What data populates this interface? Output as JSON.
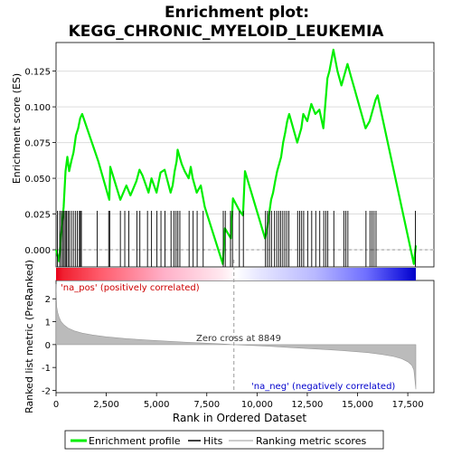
{
  "chart_data": {
    "type": "line",
    "title_line1": "Enrichment plot:",
    "title_line2": "KEGG_CHRONIC_MYELOID_LEUKEMIA",
    "xlabel": "Rank in Ordered Dataset",
    "ylabel_top": "Enrichment score (ES)",
    "ylabel_bottom": "Ranked list metric (PreRanked)",
    "xlim": [
      0,
      18800
    ],
    "x_ticks": [
      0,
      2500,
      5000,
      7500,
      10000,
      12500,
      15000,
      17500
    ],
    "x_tick_labels": [
      "0",
      "2,500",
      "5,000",
      "7,500",
      "10,000",
      "12,500",
      "15,000",
      "17,500"
    ],
    "es_ylim": [
      -0.012,
      0.145
    ],
    "es_ticks": [
      0.0,
      0.025,
      0.05,
      0.075,
      0.1,
      0.125
    ],
    "es_tick_labels": [
      "0.000",
      "0.025",
      "0.050",
      "0.075",
      "0.100",
      "0.125"
    ],
    "metric_ylim": [
      -2.1,
      2.8
    ],
    "metric_ticks": [
      -2,
      -1,
      0,
      1,
      2
    ],
    "metric_tick_labels": [
      "-2",
      "-1",
      "0",
      "1",
      "2"
    ],
    "zero_cross_label": "Zero cross at 8849",
    "zero_cross_x": 8849,
    "pos_label": "'na_pos' (positively correlated)",
    "neg_label": "'na_neg' (negatively correlated)",
    "legend": {
      "items": [
        {
          "label": "Enrichment profile",
          "color": "#00ee00"
        },
        {
          "label": "Hits",
          "color": "#000000"
        },
        {
          "label": "Ranking metric scores",
          "color": "#bbbbbb"
        }
      ]
    },
    "colors": {
      "es_line": "#00ee00",
      "hits": "#000000",
      "metric_fill": "#bbbbbb",
      "pos_text": "#cc0000",
      "neg_text": "#0000cc",
      "zero_line": "#999999"
    },
    "es_profile": {
      "x": [
        0,
        150,
        280,
        380,
        470,
        560,
        650,
        760,
        870,
        990,
        1100,
        1200,
        1300,
        2100,
        2650,
        2700,
        3200,
        3500,
        3700,
        4000,
        4150,
        4300,
        4600,
        4750,
        5000,
        5200,
        5400,
        5700,
        5800,
        5900,
        6000,
        6050,
        6150,
        6250,
        6400,
        6600,
        6700,
        6800,
        7000,
        7200,
        7400,
        8300,
        8400,
        8700,
        8800,
        9100,
        9300,
        9400,
        10400,
        10500,
        10600,
        10700,
        10800,
        10900,
        11000,
        11100,
        11200,
        11300,
        11400,
        11500,
        11600,
        12000,
        12200,
        12300,
        12500,
        12700,
        12900,
        13100,
        13300,
        13500,
        13600,
        13800,
        14000,
        14200,
        14500,
        14700,
        14800,
        15400,
        15600,
        15800,
        15900,
        16000,
        17800,
        17900
      ],
      "y": [
        0.0,
        -0.008,
        0.015,
        0.03,
        0.055,
        0.065,
        0.055,
        0.062,
        0.068,
        0.08,
        0.085,
        0.092,
        0.095,
        0.062,
        0.035,
        0.058,
        0.035,
        0.045,
        0.038,
        0.048,
        0.056,
        0.052,
        0.04,
        0.05,
        0.04,
        0.054,
        0.056,
        0.04,
        0.045,
        0.055,
        0.062,
        0.07,
        0.065,
        0.06,
        0.055,
        0.05,
        0.058,
        0.05,
        0.04,
        0.045,
        0.03,
        -0.01,
        0.015,
        0.008,
        0.036,
        0.028,
        0.024,
        0.055,
        0.008,
        0.015,
        0.025,
        0.035,
        0.04,
        0.048,
        0.055,
        0.06,
        0.065,
        0.075,
        0.082,
        0.09,
        0.095,
        0.075,
        0.085,
        0.095,
        0.09,
        0.102,
        0.095,
        0.098,
        0.085,
        0.12,
        0.125,
        0.14,
        0.125,
        0.115,
        0.13,
        0.12,
        0.115,
        0.085,
        0.09,
        0.1,
        0.105,
        0.108,
        -0.01,
        0.003
      ]
    },
    "hit_positions": [
      70,
      180,
      260,
      330,
      400,
      460,
      520,
      590,
      660,
      760,
      860,
      960,
      1060,
      1160,
      1210,
      1260,
      2050,
      2620,
      2670,
      3200,
      3420,
      3620,
      4020,
      4170,
      4550,
      4750,
      5020,
      5220,
      5420,
      5720,
      5870,
      5970,
      6060,
      6160,
      6620,
      6820,
      7020,
      7320,
      8320,
      8420,
      8680,
      8780,
      9120,
      9320,
      10420,
      10520,
      10620,
      10720,
      10870,
      10980,
      11080,
      11180,
      11280,
      11380,
      11480,
      11580,
      12020,
      12120,
      12220,
      12320,
      12520,
      12720,
      12920,
      13120,
      13320,
      13420,
      13520,
      13820,
      14320,
      14420,
      14520,
      15420,
      15620,
      15720,
      15820,
      15920,
      17880
    ],
    "metric_profile": {
      "x": [
        0,
        30,
        80,
        150,
        250,
        400,
        600,
        900,
        1300,
        1800,
        2500,
        3500,
        4500,
        5500,
        6500,
        7500,
        8200,
        8849,
        9500,
        10500,
        11500,
        12500,
        13500,
        14500,
        15500,
        16200,
        16800,
        17200,
        17500,
        17700,
        17800,
        17850,
        17900
      ],
      "y": [
        2.65,
        1.65,
        1.4,
        1.2,
        1.0,
        0.85,
        0.72,
        0.6,
        0.5,
        0.42,
        0.34,
        0.26,
        0.2,
        0.15,
        0.1,
        0.06,
        0.03,
        0.0,
        -0.03,
        -0.07,
        -0.12,
        -0.17,
        -0.22,
        -0.28,
        -0.35,
        -0.43,
        -0.52,
        -0.62,
        -0.75,
        -0.9,
        -1.1,
        -1.5,
        -1.95
      ]
    }
  }
}
